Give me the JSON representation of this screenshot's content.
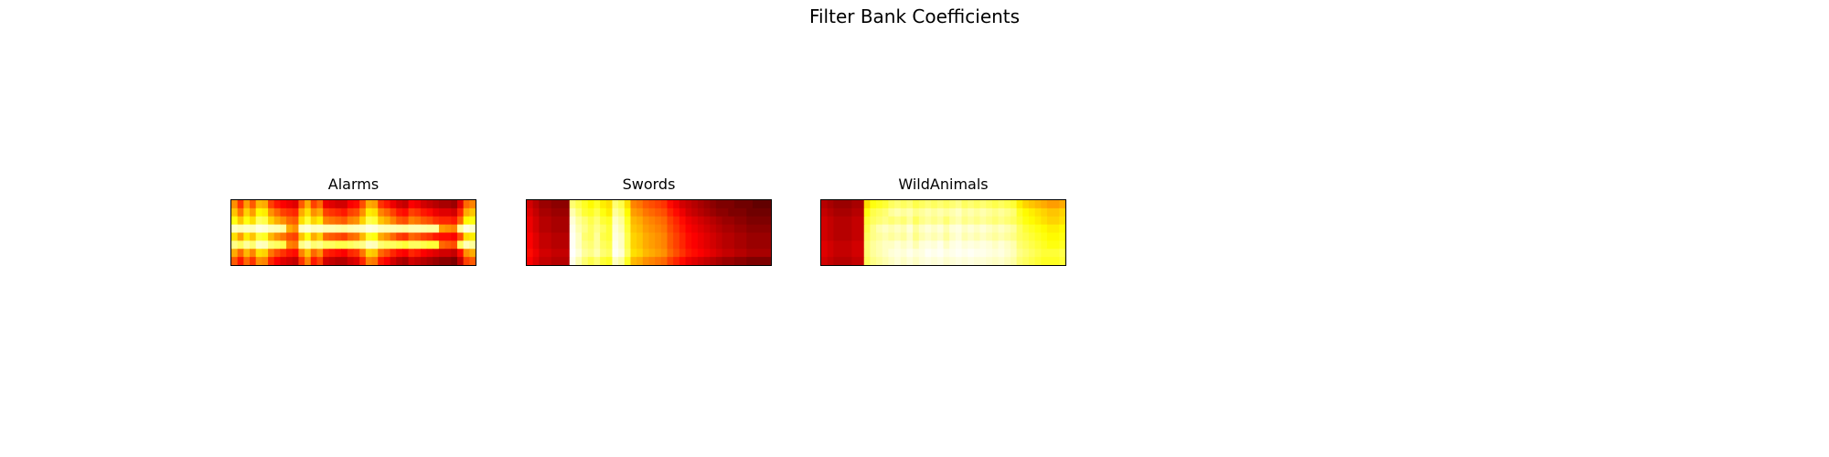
{
  "figure": {
    "title": "Filter Bank Coefficients"
  },
  "colors": {
    "background": "#ffffff",
    "frame": "#000000",
    "colormap": "hot"
  },
  "chart_data": [
    {
      "type": "heatmap",
      "title": "Alarms",
      "xlabel": "",
      "ylabel": "",
      "axis_ticks": "off",
      "grid": false,
      "colormap": "hot",
      "value_range": [
        0,
        1
      ],
      "values": [
        [
          0.58,
          0.44,
          0.6,
          0.5,
          0.64,
          0.62,
          0.46,
          0.4,
          0.36,
          0.34,
          0.32,
          0.5,
          0.62,
          0.46,
          0.52,
          0.34,
          0.32,
          0.3,
          0.3,
          0.36,
          0.38,
          0.48,
          0.62,
          0.6,
          0.44,
          0.4,
          0.34,
          0.3,
          0.28,
          0.36,
          0.34,
          0.3,
          0.28,
          0.26,
          0.24,
          0.24,
          0.22,
          0.32,
          0.52,
          0.56
        ],
        [
          0.66,
          0.54,
          0.68,
          0.6,
          0.74,
          0.72,
          0.58,
          0.52,
          0.46,
          0.44,
          0.42,
          0.62,
          0.7,
          0.58,
          0.62,
          0.46,
          0.44,
          0.42,
          0.4,
          0.46,
          0.48,
          0.58,
          0.72,
          0.7,
          0.56,
          0.52,
          0.46,
          0.4,
          0.38,
          0.46,
          0.44,
          0.4,
          0.38,
          0.34,
          0.32,
          0.32,
          0.3,
          0.42,
          0.62,
          0.66
        ],
        [
          0.76,
          0.66,
          0.76,
          0.7,
          0.84,
          0.82,
          0.68,
          0.62,
          0.58,
          0.52,
          0.5,
          0.7,
          0.8,
          0.68,
          0.72,
          0.56,
          0.54,
          0.52,
          0.5,
          0.56,
          0.58,
          0.68,
          0.82,
          0.8,
          0.66,
          0.62,
          0.56,
          0.5,
          0.48,
          0.56,
          0.54,
          0.5,
          0.48,
          0.44,
          0.42,
          0.42,
          0.4,
          0.52,
          0.74,
          0.76
        ],
        [
          0.94,
          0.92,
          0.94,
          0.93,
          0.97,
          0.96,
          0.93,
          0.92,
          0.9,
          0.62,
          0.58,
          0.94,
          0.96,
          0.93,
          0.94,
          0.92,
          0.92,
          0.91,
          0.9,
          0.92,
          0.93,
          0.94,
          0.97,
          0.96,
          0.93,
          0.92,
          0.92,
          0.91,
          0.9,
          0.92,
          0.92,
          0.91,
          0.9,
          0.9,
          0.6,
          0.58,
          0.56,
          0.9,
          0.97,
          0.95
        ],
        [
          0.7,
          0.6,
          0.72,
          0.66,
          0.8,
          0.78,
          0.64,
          0.58,
          0.54,
          0.48,
          0.46,
          0.66,
          0.76,
          0.62,
          0.68,
          0.52,
          0.5,
          0.48,
          0.46,
          0.52,
          0.54,
          0.64,
          0.78,
          0.76,
          0.62,
          0.58,
          0.52,
          0.46,
          0.44,
          0.52,
          0.5,
          0.46,
          0.44,
          0.4,
          0.38,
          0.38,
          0.36,
          0.48,
          0.7,
          0.72
        ],
        [
          0.88,
          0.84,
          0.9,
          0.86,
          0.94,
          0.93,
          0.86,
          0.84,
          0.82,
          0.56,
          0.54,
          0.88,
          0.92,
          0.86,
          0.88,
          0.84,
          0.84,
          0.82,
          0.82,
          0.84,
          0.86,
          0.88,
          0.94,
          0.93,
          0.86,
          0.84,
          0.84,
          0.82,
          0.8,
          0.84,
          0.84,
          0.82,
          0.8,
          0.8,
          0.52,
          0.5,
          0.48,
          0.84,
          0.93,
          0.9
        ],
        [
          0.62,
          0.52,
          0.64,
          0.56,
          0.7,
          0.68,
          0.54,
          0.48,
          0.44,
          0.4,
          0.38,
          0.56,
          0.66,
          0.52,
          0.58,
          0.42,
          0.4,
          0.38,
          0.36,
          0.42,
          0.44,
          0.54,
          0.68,
          0.66,
          0.52,
          0.48,
          0.42,
          0.38,
          0.36,
          0.42,
          0.4,
          0.36,
          0.34,
          0.32,
          0.3,
          0.3,
          0.28,
          0.38,
          0.58,
          0.62
        ],
        [
          0.5,
          0.4,
          0.52,
          0.44,
          0.58,
          0.56,
          0.42,
          0.36,
          0.32,
          0.3,
          0.28,
          0.44,
          0.56,
          0.4,
          0.46,
          0.3,
          0.28,
          0.26,
          0.26,
          0.3,
          0.32,
          0.42,
          0.56,
          0.54,
          0.4,
          0.36,
          0.3,
          0.26,
          0.24,
          0.3,
          0.28,
          0.26,
          0.24,
          0.22,
          0.2,
          0.2,
          0.18,
          0.28,
          0.46,
          0.5
        ]
      ]
    },
    {
      "type": "heatmap",
      "title": "Swords",
      "xlabel": "",
      "ylabel": "",
      "axis_ticks": "off",
      "grid": false,
      "colormap": "hot",
      "value_range": [
        0,
        1
      ],
      "values": [
        [
          0.3,
          0.26,
          0.22,
          0.22,
          0.2,
          0.2,
          0.2,
          0.86,
          0.82,
          0.78,
          0.74,
          0.78,
          0.72,
          0.7,
          0.86,
          0.82,
          0.7,
          0.56,
          0.54,
          0.5,
          0.48,
          0.46,
          0.44,
          0.38,
          0.34,
          0.3,
          0.28,
          0.26,
          0.24,
          0.22,
          0.2,
          0.18,
          0.18,
          0.18,
          0.16,
          0.16,
          0.16,
          0.14,
          0.14,
          0.14
        ],
        [
          0.32,
          0.28,
          0.24,
          0.24,
          0.22,
          0.22,
          0.22,
          0.92,
          0.86,
          0.8,
          0.78,
          0.82,
          0.76,
          0.72,
          0.9,
          0.86,
          0.74,
          0.6,
          0.58,
          0.54,
          0.52,
          0.5,
          0.48,
          0.42,
          0.38,
          0.34,
          0.3,
          0.28,
          0.26,
          0.24,
          0.22,
          0.2,
          0.2,
          0.18,
          0.18,
          0.18,
          0.16,
          0.16,
          0.16,
          0.16
        ],
        [
          0.34,
          0.3,
          0.26,
          0.26,
          0.24,
          0.24,
          0.24,
          0.96,
          0.9,
          0.86,
          0.82,
          0.86,
          0.8,
          0.78,
          0.94,
          0.9,
          0.78,
          0.64,
          0.62,
          0.58,
          0.56,
          0.54,
          0.52,
          0.46,
          0.42,
          0.38,
          0.34,
          0.32,
          0.3,
          0.28,
          0.26,
          0.24,
          0.22,
          0.22,
          0.2,
          0.2,
          0.18,
          0.18,
          0.18,
          0.18
        ],
        [
          0.34,
          0.3,
          0.26,
          0.26,
          0.24,
          0.24,
          0.24,
          0.98,
          0.92,
          0.88,
          0.84,
          0.88,
          0.84,
          0.8,
          0.96,
          0.92,
          0.8,
          0.66,
          0.64,
          0.6,
          0.58,
          0.56,
          0.54,
          0.48,
          0.44,
          0.4,
          0.36,
          0.34,
          0.32,
          0.3,
          0.28,
          0.26,
          0.24,
          0.24,
          0.22,
          0.22,
          0.2,
          0.2,
          0.2,
          0.2
        ],
        [
          0.36,
          0.32,
          0.28,
          0.28,
          0.26,
          0.26,
          0.26,
          0.99,
          0.94,
          0.86,
          0.84,
          0.9,
          0.82,
          0.8,
          0.97,
          0.94,
          0.82,
          0.68,
          0.66,
          0.62,
          0.6,
          0.58,
          0.56,
          0.5,
          0.46,
          0.42,
          0.38,
          0.36,
          0.34,
          0.32,
          0.3,
          0.28,
          0.26,
          0.26,
          0.24,
          0.24,
          0.22,
          0.22,
          0.22,
          0.22
        ],
        [
          0.36,
          0.32,
          0.28,
          0.28,
          0.26,
          0.26,
          0.26,
          0.99,
          0.94,
          0.88,
          0.86,
          0.9,
          0.84,
          0.82,
          0.98,
          0.94,
          0.82,
          0.68,
          0.66,
          0.62,
          0.6,
          0.58,
          0.56,
          0.5,
          0.46,
          0.42,
          0.38,
          0.36,
          0.34,
          0.32,
          0.3,
          0.28,
          0.26,
          0.26,
          0.24,
          0.24,
          0.22,
          0.22,
          0.22,
          0.22
        ],
        [
          0.38,
          0.34,
          0.3,
          0.3,
          0.28,
          0.28,
          0.28,
          1.0,
          0.96,
          0.9,
          0.88,
          0.92,
          0.86,
          0.84,
          0.99,
          0.96,
          0.84,
          0.7,
          0.68,
          0.64,
          0.62,
          0.6,
          0.58,
          0.52,
          0.48,
          0.44,
          0.4,
          0.38,
          0.36,
          0.34,
          0.32,
          0.3,
          0.28,
          0.28,
          0.26,
          0.26,
          0.24,
          0.24,
          0.24,
          0.24
        ],
        [
          0.36,
          0.32,
          0.28,
          0.28,
          0.26,
          0.26,
          0.26,
          0.98,
          0.92,
          0.86,
          0.82,
          0.86,
          0.8,
          0.78,
          0.94,
          0.9,
          0.78,
          0.64,
          0.62,
          0.58,
          0.56,
          0.54,
          0.52,
          0.46,
          0.42,
          0.38,
          0.34,
          0.32,
          0.3,
          0.28,
          0.26,
          0.24,
          0.22,
          0.22,
          0.2,
          0.2,
          0.18,
          0.18,
          0.18,
          0.18
        ]
      ]
    },
    {
      "type": "heatmap",
      "title": "WildAnimals",
      "xlabel": "",
      "ylabel": "",
      "axis_ticks": "off",
      "grid": false,
      "colormap": "hot",
      "value_range": [
        0,
        1
      ],
      "values": [
        [
          0.26,
          0.24,
          0.22,
          0.22,
          0.22,
          0.24,
          0.24,
          0.7,
          0.76,
          0.78,
          0.8,
          0.84,
          0.86,
          0.84,
          0.86,
          0.82,
          0.84,
          0.86,
          0.84,
          0.86,
          0.84,
          0.86,
          0.88,
          0.84,
          0.86,
          0.84,
          0.86,
          0.84,
          0.82,
          0.84,
          0.82,
          0.8,
          0.72,
          0.68,
          0.66,
          0.64,
          0.62,
          0.6,
          0.6,
          0.62
        ],
        [
          0.28,
          0.26,
          0.24,
          0.24,
          0.24,
          0.26,
          0.26,
          0.76,
          0.82,
          0.84,
          0.86,
          0.9,
          0.92,
          0.9,
          0.92,
          0.88,
          0.9,
          0.92,
          0.9,
          0.92,
          0.9,
          0.92,
          0.94,
          0.9,
          0.92,
          0.9,
          0.92,
          0.9,
          0.88,
          0.9,
          0.88,
          0.86,
          0.78,
          0.74,
          0.72,
          0.7,
          0.68,
          0.66,
          0.66,
          0.68
        ],
        [
          0.3,
          0.28,
          0.26,
          0.26,
          0.26,
          0.28,
          0.28,
          0.8,
          0.84,
          0.86,
          0.88,
          0.86,
          0.88,
          0.86,
          0.9,
          0.84,
          0.88,
          0.9,
          0.88,
          0.9,
          0.86,
          0.9,
          0.92,
          0.88,
          0.9,
          0.88,
          0.9,
          0.88,
          0.86,
          0.88,
          0.86,
          0.84,
          0.8,
          0.76,
          0.74,
          0.72,
          0.7,
          0.68,
          0.68,
          0.7
        ],
        [
          0.3,
          0.28,
          0.26,
          0.26,
          0.26,
          0.28,
          0.28,
          0.82,
          0.88,
          0.92,
          0.94,
          0.92,
          0.94,
          0.92,
          0.96,
          0.9,
          0.94,
          0.96,
          0.94,
          0.96,
          0.92,
          0.96,
          0.97,
          0.94,
          0.96,
          0.94,
          0.96,
          0.94,
          0.92,
          0.94,
          0.92,
          0.9,
          0.84,
          0.8,
          0.78,
          0.76,
          0.74,
          0.72,
          0.72,
          0.74
        ],
        [
          0.3,
          0.28,
          0.26,
          0.26,
          0.26,
          0.28,
          0.28,
          0.84,
          0.88,
          0.9,
          0.92,
          0.9,
          0.92,
          0.9,
          0.94,
          0.88,
          0.92,
          0.94,
          0.92,
          0.94,
          0.9,
          0.94,
          0.96,
          0.92,
          0.94,
          0.92,
          0.94,
          0.92,
          0.9,
          0.92,
          0.9,
          0.88,
          0.84,
          0.82,
          0.8,
          0.78,
          0.76,
          0.74,
          0.74,
          0.76
        ],
        [
          0.32,
          0.3,
          0.28,
          0.28,
          0.28,
          0.3,
          0.3,
          0.86,
          0.9,
          0.92,
          0.94,
          0.94,
          0.96,
          0.94,
          0.96,
          0.92,
          0.96,
          0.97,
          0.96,
          0.98,
          0.94,
          0.97,
          0.98,
          0.96,
          0.97,
          0.96,
          0.97,
          0.96,
          0.94,
          0.96,
          0.94,
          0.92,
          0.86,
          0.84,
          0.82,
          0.8,
          0.78,
          0.76,
          0.76,
          0.78
        ],
        [
          0.32,
          0.3,
          0.28,
          0.28,
          0.28,
          0.3,
          0.3,
          0.86,
          0.9,
          0.92,
          0.94,
          0.96,
          0.97,
          0.96,
          0.98,
          0.96,
          0.97,
          0.99,
          0.98,
          0.99,
          0.97,
          0.98,
          0.99,
          0.98,
          0.99,
          0.98,
          0.98,
          0.97,
          0.96,
          0.97,
          0.95,
          0.93,
          0.88,
          0.86,
          0.84,
          0.82,
          0.8,
          0.8,
          0.8,
          0.82
        ],
        [
          0.3,
          0.28,
          0.26,
          0.26,
          0.26,
          0.28,
          0.28,
          0.84,
          0.88,
          0.9,
          0.92,
          0.94,
          0.96,
          0.94,
          0.96,
          0.94,
          0.96,
          0.97,
          0.96,
          0.97,
          0.95,
          0.96,
          0.97,
          0.96,
          0.97,
          0.96,
          0.96,
          0.95,
          0.94,
          0.95,
          0.93,
          0.91,
          0.86,
          0.84,
          0.82,
          0.8,
          0.78,
          0.78,
          0.78,
          0.8
        ]
      ]
    }
  ]
}
